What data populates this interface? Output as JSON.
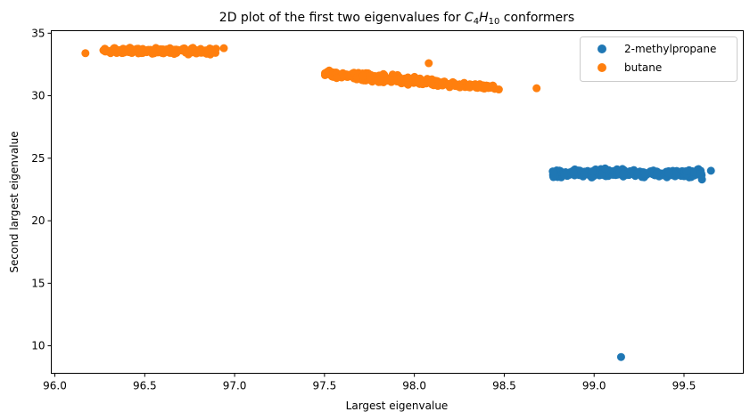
{
  "chart_data": {
    "type": "scatter",
    "title": "2D plot of the first two eigenvalues for C4H10 conformers",
    "title_parts": {
      "prefix": "2D plot of the first two eigenvalues for ",
      "C": "C",
      "sub1": "4",
      "H": "H",
      "sub2": "10",
      "suffix": " conformers"
    },
    "xlabel": "Largest eigenvalue",
    "ylabel": "Second largest eigenvalue",
    "xlim": [
      95.98,
      99.83
    ],
    "ylim": [
      7.8,
      35.2
    ],
    "xticks": [
      "96.0",
      "96.5",
      "97.0",
      "97.5",
      "98.0",
      "98.5",
      "99.0",
      "99.5"
    ],
    "xtick_values": [
      96.0,
      96.5,
      97.0,
      97.5,
      98.0,
      98.5,
      99.0,
      99.5
    ],
    "yticks": [
      "10",
      "15",
      "20",
      "25",
      "30",
      "35"
    ],
    "ytick_values": [
      10,
      15,
      20,
      25,
      30,
      35
    ],
    "grid": false,
    "legend_position": "upper right",
    "series": [
      {
        "name": "2-methylpropane",
        "color": "#1f77b4",
        "clusters": [
          {
            "x_range": [
              98.77,
              99.6
            ],
            "y_range": [
              23.3,
              24.3
            ],
            "count": 300
          }
        ],
        "points": [
          [
            99.15,
            9.1
          ],
          [
            99.65,
            24.0
          ],
          [
            98.77,
            23.95
          ],
          [
            99.6,
            23.3
          ]
        ]
      },
      {
        "name": "butane",
        "color": "#ff7f0e",
        "clusters": [
          {
            "x_range": [
              96.27,
              96.9
            ],
            "y_range": [
              33.2,
              33.95
            ],
            "count": 220
          },
          {
            "x_range": [
              97.5,
              98.45
            ],
            "y_range": [
              30.4,
              32.6
            ],
            "count": 320
          }
        ],
        "points": [
          [
            96.17,
            33.4
          ],
          [
            96.94,
            33.8
          ],
          [
            98.68,
            30.6
          ],
          [
            98.08,
            32.6
          ],
          [
            98.47,
            30.5
          ]
        ]
      }
    ]
  }
}
